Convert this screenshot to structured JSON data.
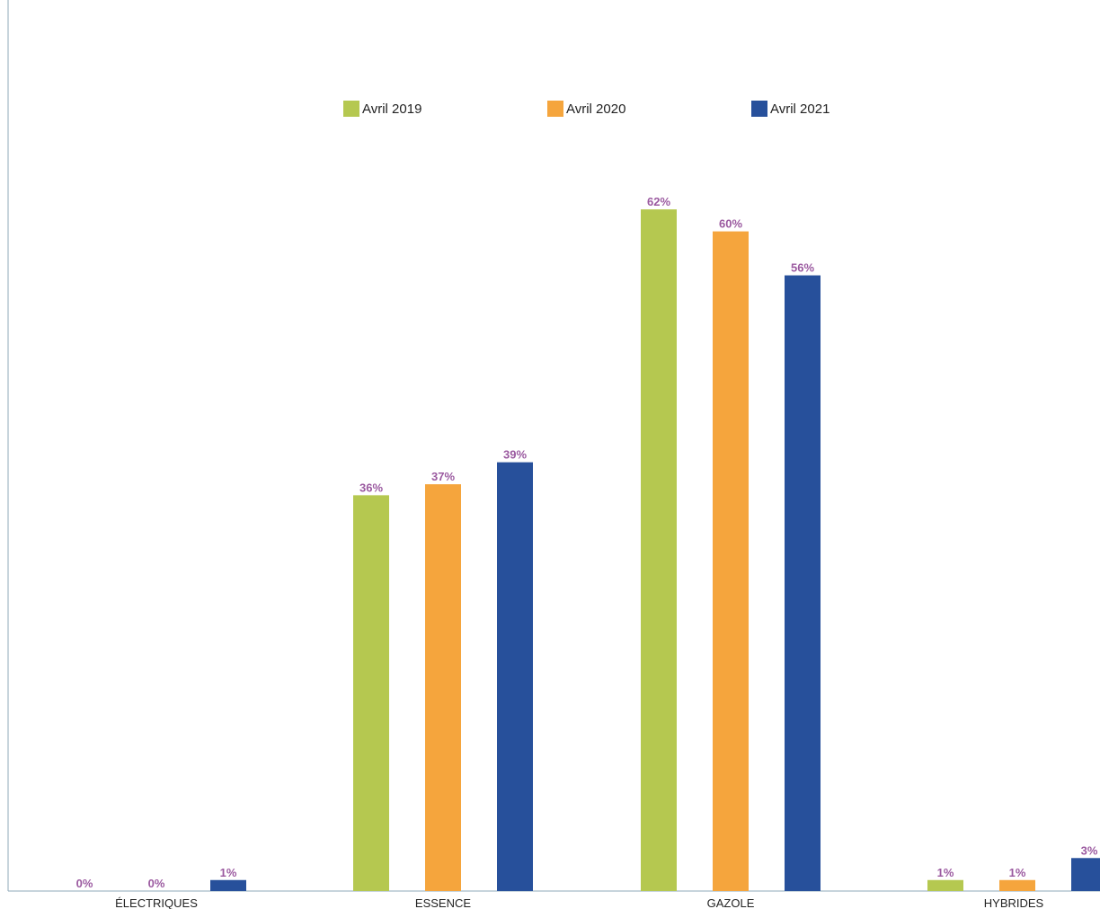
{
  "chart_data": {
    "type": "bar",
    "categories": [
      "ÉLECTRIQUES",
      "ESSENCE",
      "GAZOLE",
      "HYBRIDES"
    ],
    "series": [
      {
        "name": "Avril 2019",
        "color": "#b5c850",
        "values": [
          0,
          36,
          62,
          1
        ],
        "labels": [
          "0%",
          "36%",
          "62%",
          "1%"
        ]
      },
      {
        "name": "Avril 2020",
        "color": "#f5a53d",
        "values": [
          0,
          37,
          60,
          1
        ],
        "labels": [
          "0%",
          "37%",
          "60%",
          "1%"
        ]
      },
      {
        "name": "Avril 2021",
        "color": "#27509b",
        "values": [
          1,
          39,
          56,
          3
        ],
        "labels": [
          "1%",
          "39%",
          "56%",
          "3%"
        ]
      }
    ],
    "ylim": [
      0,
      65
    ],
    "legend_position": "top-center",
    "grid": false
  }
}
